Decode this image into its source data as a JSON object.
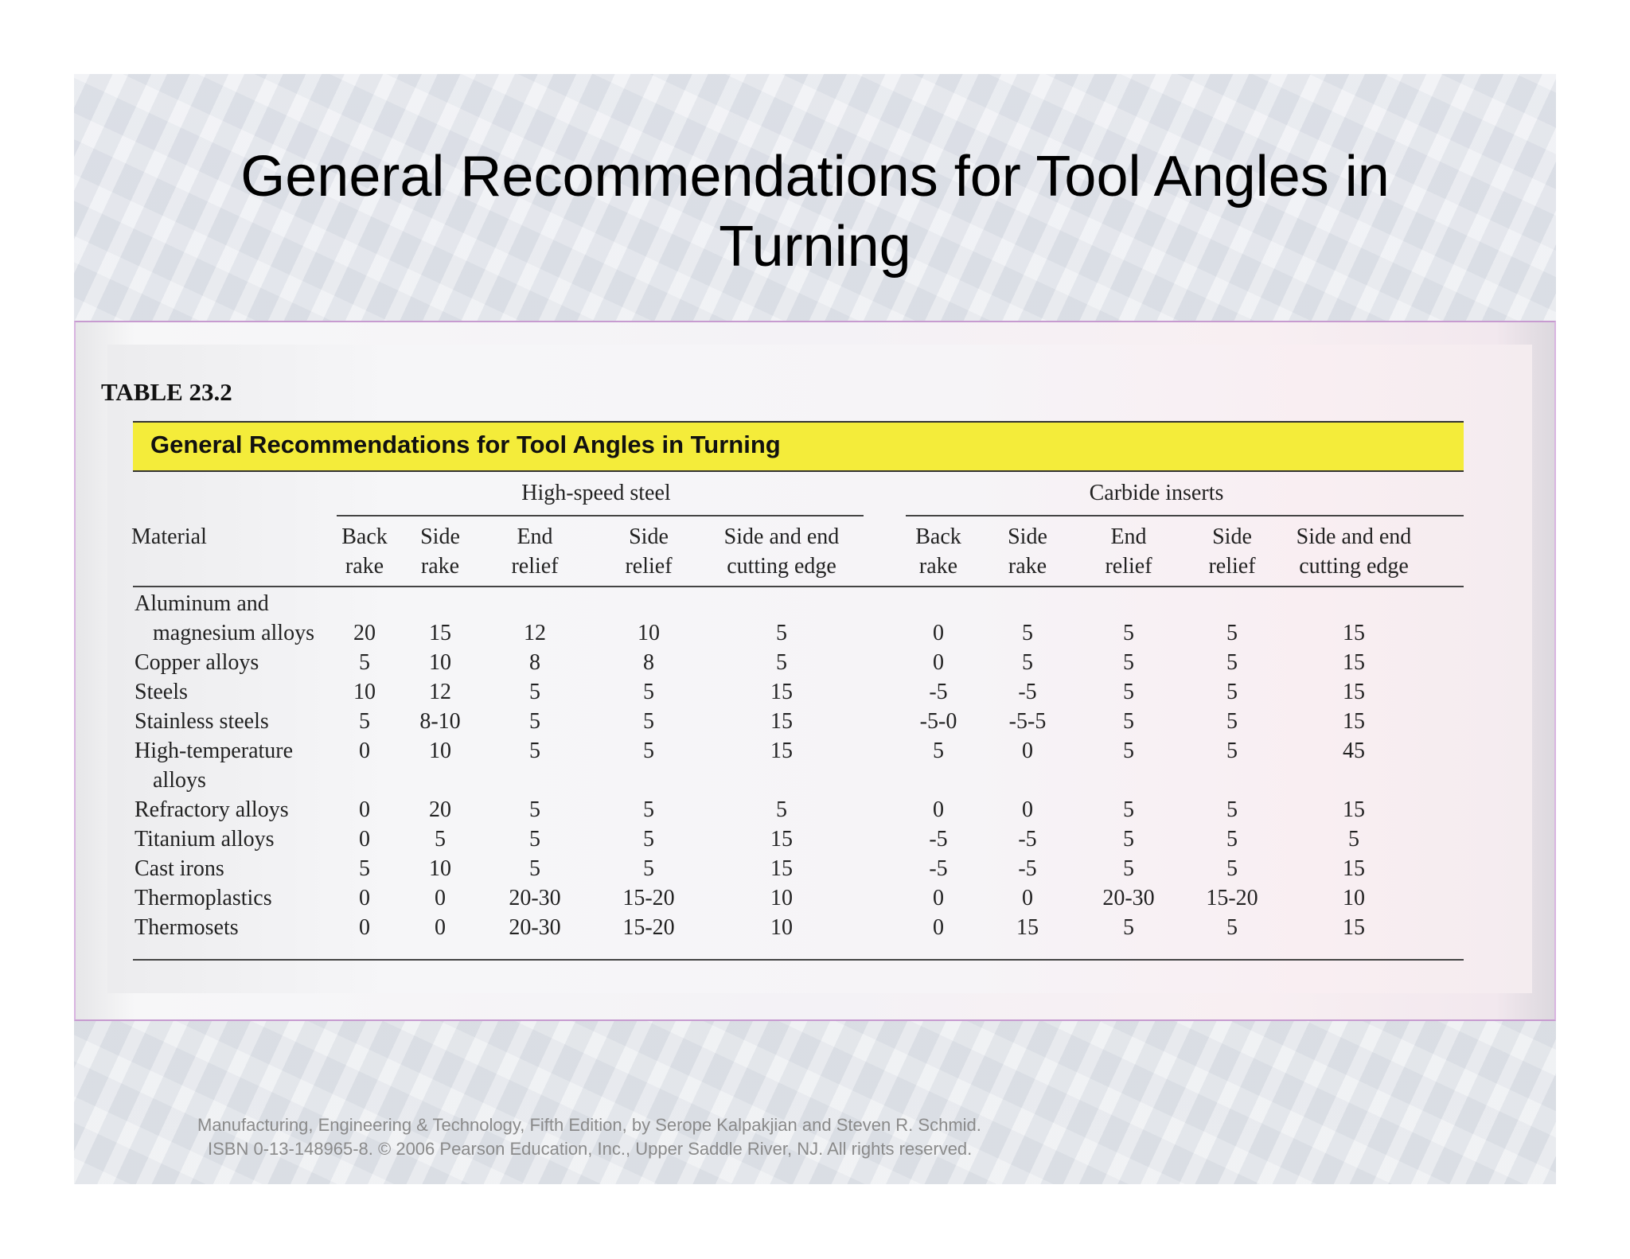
{
  "slide": {
    "title_line1": "General Recommendations for Tool Angles in",
    "title_line2": "Turning"
  },
  "table": {
    "label": "TABLE 23.2",
    "caption": "General Recommendations for Tool Angles in Turning",
    "groups": [
      "High-speed steel",
      "Carbide inserts"
    ],
    "material_header": "Material",
    "col_headers": [
      [
        "Back",
        "rake"
      ],
      [
        "Side",
        "rake"
      ],
      [
        "End",
        "relief"
      ],
      [
        "Side",
        "relief"
      ],
      [
        "Side and end",
        "cutting edge"
      ],
      [
        "Back",
        "rake"
      ],
      [
        "Side",
        "rake"
      ],
      [
        "End",
        "relief"
      ],
      [
        "Side",
        "relief"
      ],
      [
        "Side and end",
        "cutting edge"
      ]
    ],
    "rows": [
      {
        "material": [
          "Aluminum and",
          "magnesium alloys"
        ],
        "values": [
          "20",
          "15",
          "12",
          "10",
          "5",
          "0",
          "5",
          "5",
          "5",
          "15"
        ]
      },
      {
        "material": [
          "Copper alloys"
        ],
        "values": [
          "5",
          "10",
          "8",
          "8",
          "5",
          "0",
          "5",
          "5",
          "5",
          "15"
        ]
      },
      {
        "material": [
          "Steels"
        ],
        "values": [
          "10",
          "12",
          "5",
          "5",
          "15",
          "-5",
          "-5",
          "5",
          "5",
          "15"
        ]
      },
      {
        "material": [
          "Stainless steels"
        ],
        "values": [
          "5",
          "8-10",
          "5",
          "5",
          "15",
          "-5-0",
          "-5-5",
          "5",
          "5",
          "15"
        ]
      },
      {
        "material": [
          "High-temperature",
          "alloys"
        ],
        "values": [
          "0",
          "10",
          "5",
          "5",
          "15",
          "5",
          "0",
          "5",
          "5",
          "45"
        ]
      },
      {
        "material": [
          "Refractory alloys"
        ],
        "values": [
          "0",
          "20",
          "5",
          "5",
          "5",
          "0",
          "0",
          "5",
          "5",
          "15"
        ]
      },
      {
        "material": [
          "Titanium alloys"
        ],
        "values": [
          "0",
          "5",
          "5",
          "5",
          "15",
          "-5",
          "-5",
          "5",
          "5",
          "5"
        ]
      },
      {
        "material": [
          "Cast irons"
        ],
        "values": [
          "5",
          "10",
          "5",
          "5",
          "15",
          "-5",
          "-5",
          "5",
          "5",
          "15"
        ]
      },
      {
        "material": [
          "Thermoplastics"
        ],
        "values": [
          "0",
          "0",
          "20-30",
          "15-20",
          "10",
          "0",
          "0",
          "20-30",
          "15-20",
          "10"
        ]
      },
      {
        "material": [
          "Thermosets"
        ],
        "values": [
          "0",
          "0",
          "20-30",
          "15-20",
          "10",
          "0",
          "15",
          "5",
          "5",
          "15"
        ]
      }
    ]
  },
  "footer": {
    "line1": "Manufacturing, Engineering & Technology, Fifth Edition, by Serope Kalpakjian and Steven R. Schmid.",
    "line2": "ISBN 0-13-148965-8. © 2006 Pearson Education, Inc., Upper Saddle River, NJ.  All rights reserved."
  }
}
